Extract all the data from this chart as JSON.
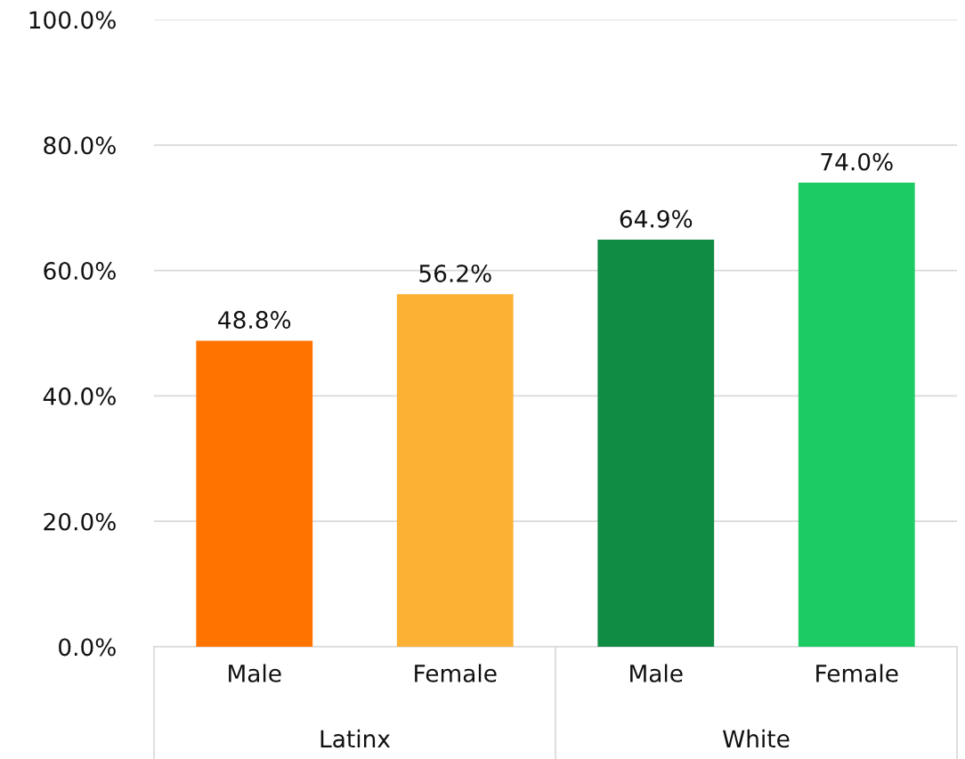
{
  "chart_data": {
    "type": "bar",
    "categories": [
      "Male",
      "Female",
      "Male",
      "Female"
    ],
    "values": [
      48.8,
      56.2,
      64.9,
      74.0
    ],
    "colors": [
      "#ff7300",
      "#fcb034",
      "#118c44",
      "#1ccc63"
    ],
    "value_labels": [
      "48.8%",
      "56.2%",
      "64.9%",
      "74.0%"
    ],
    "annotations": [
      "Latinx",
      "White"
    ],
    "ylim": [
      0,
      100
    ],
    "yticks": [
      {
        "value": 0,
        "label": "0.0%"
      },
      {
        "value": 20,
        "label": "20.0%"
      },
      {
        "value": 40,
        "label": "40.0%"
      },
      {
        "value": 60,
        "label": "60.0%"
      },
      {
        "value": 80,
        "label": "80.0%"
      },
      {
        "value": 100,
        "label": "100.0%"
      }
    ],
    "grid": "y"
  }
}
